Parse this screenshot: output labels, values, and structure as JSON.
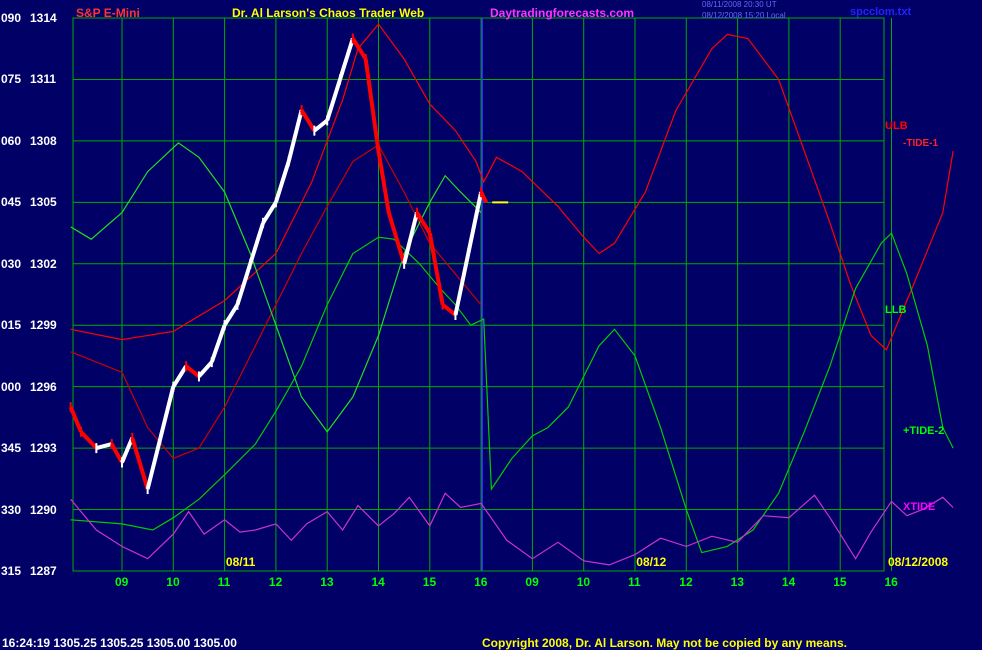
{
  "header": {
    "symbol": "S&P E-Mini",
    "title": "Dr. Al Larson's Chaos Trader Web",
    "site": "Daytradingforecasts.com",
    "stamp1": "08/11/2008 20:30 UT",
    "stamp2": "08/12/2008 15:20 Local",
    "file": "spcclom.txt"
  },
  "footer": {
    "quote": "16:24:19  1305.25 1305.25 1305.00 1305.00",
    "copyright": "Copyright 2008, Dr. Al Larson. May not be copied by any means."
  },
  "colors": {
    "background": "#000066",
    "grid": "#00aa00",
    "price_up": "#ffffff",
    "price_down": "#ff0000",
    "ulb": "#ff0000",
    "llb": "#00cc00",
    "tide1": "#cc0000",
    "tide2": "#22dd22",
    "xtide": "#cc33cc",
    "axis_text": "#ffffff",
    "time_text": "#00ff00",
    "date_text": "#ffff00"
  },
  "chart_data": {
    "type": "line",
    "title": "S&P E-Mini",
    "y_axis_labels": [
      {
        "left": "090",
        "price": "1314"
      },
      {
        "left": "075",
        "price": "1311"
      },
      {
        "left": "060",
        "price": "1308"
      },
      {
        "left": "045",
        "price": "1305"
      },
      {
        "left": "030",
        "price": "1302"
      },
      {
        "left": "015",
        "price": "1299"
      },
      {
        "left": "000",
        "price": "1296"
      },
      {
        "left": "345",
        "price": "1293"
      },
      {
        "left": "330",
        "price": "1290"
      },
      {
        "left": "315",
        "price": "1287"
      }
    ],
    "ylim": [
      1287,
      1314
    ],
    "x_hour_labels": [
      "09",
      "10",
      "11",
      "12",
      "13",
      "14",
      "15",
      "16",
      "09",
      "10",
      "11",
      "12",
      "13",
      "14",
      "15",
      "16"
    ],
    "date_labels": [
      {
        "text": "08/11",
        "after_hour_index": 3
      },
      {
        "text": "08/12",
        "after_hour_index": 11
      },
      {
        "text": "08/12/2008",
        "after_hour_index": 15
      }
    ],
    "day_divider_after_hour_index": 7,
    "last_price": 1305.0,
    "price_bars": [
      {
        "h": 8.0,
        "p": 1295.0
      },
      {
        "h": 8.2,
        "p": 1293.8
      },
      {
        "h": 8.5,
        "p": 1293.0
      },
      {
        "h": 8.8,
        "p": 1293.2
      },
      {
        "h": 9.0,
        "p": 1292.3
      },
      {
        "h": 9.2,
        "p": 1293.5
      },
      {
        "h": 9.5,
        "p": 1291.0
      },
      {
        "h": 9.75,
        "p": 1293.5
      },
      {
        "h": 10.0,
        "p": 1296.0
      },
      {
        "h": 10.25,
        "p": 1297.0
      },
      {
        "h": 10.5,
        "p": 1296.5
      },
      {
        "h": 10.75,
        "p": 1297.2
      },
      {
        "h": 11.0,
        "p": 1299.0
      },
      {
        "h": 11.25,
        "p": 1300.0
      },
      {
        "h": 11.5,
        "p": 1302.0
      },
      {
        "h": 11.75,
        "p": 1304.0
      },
      {
        "h": 12.0,
        "p": 1305.0
      },
      {
        "h": 12.25,
        "p": 1307.0
      },
      {
        "h": 12.5,
        "p": 1309.5
      },
      {
        "h": 12.75,
        "p": 1308.5
      },
      {
        "h": 13.0,
        "p": 1309.0
      },
      {
        "h": 13.25,
        "p": 1311.0
      },
      {
        "h": 13.5,
        "p": 1313.0
      },
      {
        "h": 13.75,
        "p": 1312.0
      },
      {
        "h": 14.0,
        "p": 1307.5
      },
      {
        "h": 14.2,
        "p": 1304.5
      },
      {
        "h": 14.5,
        "p": 1302.0
      },
      {
        "h": 14.75,
        "p": 1304.5
      },
      {
        "h": 15.0,
        "p": 1303.5
      },
      {
        "h": 15.25,
        "p": 1300.0
      },
      {
        "h": 15.5,
        "p": 1299.5
      },
      {
        "h": 15.75,
        "p": 1302.5
      },
      {
        "h": 16.0,
        "p": 1305.5
      },
      {
        "h": 16.1,
        "p": 1305.0
      }
    ],
    "series": [
      {
        "name": "ULB",
        "points": [
          [
            8,
            1298.8
          ],
          [
            9,
            1298.3
          ],
          [
            10,
            1298.7
          ],
          [
            11,
            1300.2
          ],
          [
            12,
            1302.5
          ],
          [
            12.7,
            1306.0
          ],
          [
            13.3,
            1310.0
          ],
          [
            13.6,
            1312.5
          ],
          [
            14.0,
            1313.7
          ],
          [
            14.5,
            1312.0
          ],
          [
            15.0,
            1309.8
          ],
          [
            15.5,
            1308.5
          ],
          [
            15.9,
            1307.0
          ],
          [
            16.05,
            1306.0
          ],
          [
            16.3,
            1307.2
          ],
          [
            16.8,
            1306.5
          ],
          [
            17.5,
            1304.8
          ],
          [
            18.0,
            1303.3
          ],
          [
            18.3,
            1302.5
          ],
          [
            18.6,
            1303.0
          ],
          [
            19.2,
            1305.5
          ],
          [
            19.8,
            1309.5
          ],
          [
            20.5,
            1312.5
          ],
          [
            20.8,
            1313.2
          ],
          [
            21.2,
            1313.0
          ],
          [
            21.8,
            1311.0
          ],
          [
            22.3,
            1307.5
          ],
          [
            22.8,
            1304.0
          ],
          [
            23.2,
            1301.0
          ],
          [
            23.6,
            1298.5
          ],
          [
            23.9,
            1297.8
          ],
          [
            24.4,
            1300.8
          ],
          [
            25.0,
            1304.5
          ],
          [
            25.2,
            1307.5
          ]
        ]
      },
      {
        "name": "LLB",
        "points": [
          [
            8,
            1289.5
          ],
          [
            9,
            1289.3
          ],
          [
            9.6,
            1289.0
          ],
          [
            10,
            1289.6
          ],
          [
            10.5,
            1290.5
          ],
          [
            11,
            1291.7
          ],
          [
            11.6,
            1293.2
          ],
          [
            12.0,
            1294.8
          ],
          [
            12.5,
            1297.0
          ],
          [
            13.0,
            1300.0
          ],
          [
            13.5,
            1302.5
          ],
          [
            14.0,
            1303.3
          ],
          [
            14.3,
            1303.2
          ],
          [
            14.8,
            1302.0
          ],
          [
            15.2,
            1300.8
          ],
          [
            15.5,
            1300.0
          ],
          [
            15.8,
            1299.0
          ],
          [
            16.05,
            1299.3
          ],
          [
            16.2,
            1291.0
          ],
          [
            16.6,
            1292.5
          ],
          [
            17.0,
            1293.6
          ],
          [
            17.3,
            1294.0
          ],
          [
            17.7,
            1295.0
          ],
          [
            18.0,
            1296.5
          ],
          [
            18.3,
            1298.0
          ],
          [
            18.6,
            1298.8
          ],
          [
            19.0,
            1297.5
          ],
          [
            19.5,
            1294.0
          ],
          [
            20.0,
            1290.0
          ],
          [
            20.3,
            1287.9
          ],
          [
            20.8,
            1288.2
          ],
          [
            21.3,
            1289.0
          ],
          [
            21.8,
            1290.8
          ],
          [
            22.3,
            1293.8
          ],
          [
            22.8,
            1297.0
          ],
          [
            23.3,
            1300.8
          ],
          [
            23.8,
            1303.0
          ],
          [
            24.0,
            1303.5
          ],
          [
            24.3,
            1301.5
          ],
          [
            24.7,
            1298.0
          ],
          [
            25.0,
            1294.0
          ],
          [
            25.2,
            1293.0
          ]
        ]
      },
      {
        "name": "-TIDE-1",
        "points": [
          [
            8,
            1297.7
          ],
          [
            9,
            1296.7
          ],
          [
            9.5,
            1294.0
          ],
          [
            10,
            1292.5
          ],
          [
            10.5,
            1293.0
          ],
          [
            11,
            1295.0
          ],
          [
            11.5,
            1297.5
          ],
          [
            12.0,
            1300.0
          ],
          [
            12.5,
            1302.5
          ],
          [
            13.0,
            1304.8
          ],
          [
            13.5,
            1307.0
          ],
          [
            14.0,
            1307.8
          ],
          [
            14.5,
            1305.5
          ],
          [
            15.0,
            1303.0
          ],
          [
            15.5,
            1301.5
          ],
          [
            16.0,
            1300.0
          ]
        ]
      },
      {
        "name": "+TIDE-2",
        "points": [
          [
            8,
            1303.8
          ],
          [
            8.4,
            1303.2
          ],
          [
            9,
            1304.5
          ],
          [
            9.5,
            1306.5
          ],
          [
            10.1,
            1307.9
          ],
          [
            10.5,
            1307.2
          ],
          [
            11,
            1305.5
          ],
          [
            11.5,
            1302.5
          ],
          [
            12.0,
            1299.0
          ],
          [
            12.5,
            1295.5
          ],
          [
            13.0,
            1293.8
          ],
          [
            13.5,
            1295.5
          ],
          [
            14.0,
            1298.5
          ],
          [
            14.5,
            1302.5
          ],
          [
            15.0,
            1305.0
          ],
          [
            15.3,
            1306.3
          ],
          [
            15.6,
            1305.5
          ],
          [
            16.0,
            1304.5
          ]
        ]
      },
      {
        "name": "XTIDE",
        "points": [
          [
            8,
            1290.5
          ],
          [
            8.5,
            1289.0
          ],
          [
            9.0,
            1288.2
          ],
          [
            9.5,
            1287.6
          ],
          [
            10.0,
            1288.8
          ],
          [
            10.3,
            1289.9
          ],
          [
            10.6,
            1288.8
          ],
          [
            11.0,
            1289.5
          ],
          [
            11.3,
            1288.9
          ],
          [
            11.6,
            1289.0
          ],
          [
            12.0,
            1289.3
          ],
          [
            12.3,
            1288.5
          ],
          [
            12.6,
            1289.3
          ],
          [
            13.0,
            1289.9
          ],
          [
            13.3,
            1289.0
          ],
          [
            13.6,
            1290.2
          ],
          [
            14.0,
            1289.2
          ],
          [
            14.3,
            1289.8
          ],
          [
            14.6,
            1290.6
          ],
          [
            15.0,
            1289.2
          ],
          [
            15.3,
            1290.8
          ],
          [
            15.6,
            1290.1
          ],
          [
            16.0,
            1290.3
          ],
          [
            16.5,
            1288.5
          ],
          [
            17.0,
            1287.6
          ],
          [
            17.5,
            1288.4
          ],
          [
            18.0,
            1287.5
          ],
          [
            18.5,
            1287.3
          ],
          [
            19.0,
            1287.8
          ],
          [
            19.5,
            1288.6
          ],
          [
            20.0,
            1288.2
          ],
          [
            20.5,
            1288.7
          ],
          [
            21.0,
            1288.4
          ],
          [
            21.5,
            1289.7
          ],
          [
            22.0,
            1289.6
          ],
          [
            22.5,
            1290.7
          ],
          [
            22.8,
            1289.6
          ],
          [
            23.0,
            1288.8
          ],
          [
            23.3,
            1287.6
          ],
          [
            23.6,
            1288.9
          ],
          [
            24.0,
            1290.4
          ],
          [
            24.3,
            1289.7
          ],
          [
            24.6,
            1290.0
          ],
          [
            25.0,
            1290.6
          ],
          [
            25.2,
            1290.1
          ]
        ]
      }
    ],
    "legend": [
      {
        "label": "ULB",
        "color": "#ff0000"
      },
      {
        "label": "-TIDE-1",
        "color": "#ff2222"
      },
      {
        "label": "LLB",
        "color": "#00ff00"
      },
      {
        "label": "+TIDE-2",
        "color": "#00ff00"
      },
      {
        "label": "XTIDE",
        "color": "#ff00ff"
      }
    ]
  }
}
